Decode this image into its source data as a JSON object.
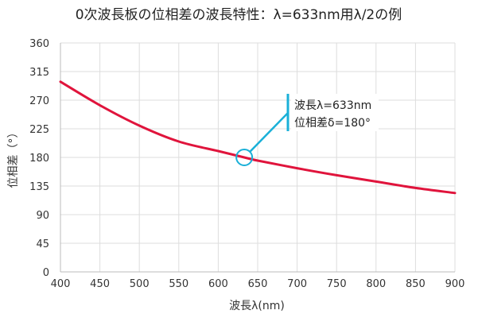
{
  "chart_data": {
    "type": "line",
    "title": "0次波長板の位相差の波長特性：λ=633nm用λ/2の例",
    "xlabel": "波長λ(nm)",
    "ylabel": "位相差（°）",
    "xlim": [
      400,
      900
    ],
    "ylim": [
      0,
      360
    ],
    "x_ticks": [
      "400",
      "450",
      "500",
      "550",
      "600",
      "650",
      "700",
      "750",
      "800",
      "850",
      "900"
    ],
    "y_ticks": [
      "0",
      "45",
      "90",
      "135",
      "180",
      "225",
      "270",
      "315",
      "360"
    ],
    "grid": true,
    "series": [
      {
        "color": "#e0143c",
        "x": [
          400,
          450,
          500,
          550,
          600,
          633,
          650,
          700,
          750,
          800,
          850,
          900
        ],
        "y": [
          299,
          262,
          230,
          205,
          190,
          180,
          175,
          163,
          152,
          142,
          132,
          124
        ]
      }
    ],
    "annotation": {
      "line1": "波長λ=633nm",
      "line2": "位相差δ=180°",
      "point": {
        "x": 633,
        "y": 180
      },
      "color": "#1ab0d8"
    }
  }
}
